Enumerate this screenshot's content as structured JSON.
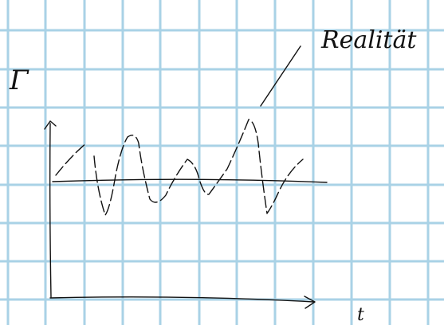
{
  "annotation": "Realität",
  "y_axis_label": "Γ",
  "x_axis_label": "t"
}
